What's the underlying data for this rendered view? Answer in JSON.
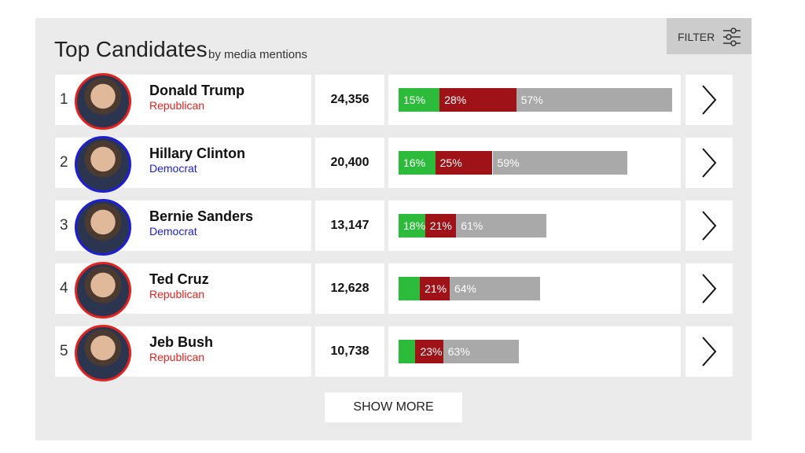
{
  "header": {
    "title": "Top Candidates",
    "subtitle": "by media mentions",
    "filter": "FILTER"
  },
  "segment_colors": [
    "#2dbb3b",
    "#9e1218",
    "#a9a9a9"
  ],
  "candidates": [
    {
      "rank": 1,
      "name": "Donald Trump",
      "party": "Republican",
      "color": "#e5211d",
      "mentions": 24356,
      "mentions_label": "24,356",
      "shares": [
        15,
        28,
        57
      ],
      "share_labels": [
        "15%",
        "28%",
        "57%"
      ]
    },
    {
      "rank": 2,
      "name": "Hillary Clinton",
      "party": "Democrat",
      "color": "#1c1ed8",
      "mentions": 20400,
      "mentions_label": "20,400",
      "shares": [
        16,
        25,
        59
      ],
      "share_labels": [
        "16%",
        "25%",
        "59%"
      ]
    },
    {
      "rank": 3,
      "name": "Bernie Sanders",
      "party": "Democrat",
      "color": "#1c1ed8",
      "mentions": 13147,
      "mentions_label": "13,147",
      "shares": [
        18,
        21,
        61
      ],
      "share_labels": [
        "18%",
        "21%",
        "61%"
      ]
    },
    {
      "rank": 4,
      "name": "Ted Cruz",
      "party": "Republican",
      "color": "#e5211d",
      "mentions": 12628,
      "mentions_label": "12,628",
      "shares": [
        15,
        21,
        64
      ],
      "share_labels": [
        null,
        "21%",
        "64%"
      ]
    },
    {
      "rank": 5,
      "name": "Jeb Bush",
      "party": "Republican",
      "color": "#e5211d",
      "mentions": 10738,
      "mentions_label": "10,738",
      "shares": [
        14,
        23,
        63
      ],
      "share_labels": [
        null,
        "23%",
        "63%"
      ]
    }
  ],
  "show_more": "SHOW MORE"
}
